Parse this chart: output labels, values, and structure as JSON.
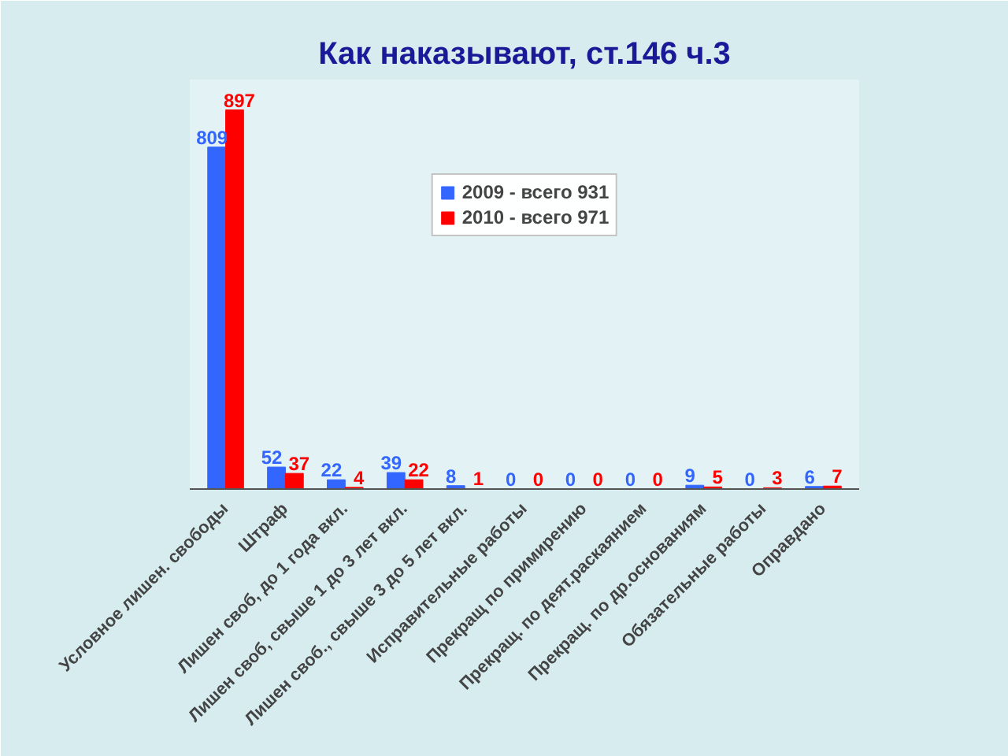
{
  "chart_data": {
    "type": "bar",
    "title": "Как наказывают, ст.146 ч.3",
    "categories": [
      "Условное лишен. свободы",
      "Штраф",
      "Лишен своб, до 1 года вкл.",
      "Лишен своб, свыше 1 до 3 лет вкл.",
      "Лишен своб., свыше 3 до 5 лет вкл.",
      "Исправительные работы",
      "Прекращ по примирению",
      "Прекращ. по деят.раскаянием",
      "Прекращ. по др.основаниям",
      "Обязательные работы",
      "Оправдано"
    ],
    "series": [
      {
        "name": "2009 - всего 931",
        "color": "#3366ff",
        "values": [
          809,
          52,
          22,
          39,
          8,
          0,
          0,
          0,
          9,
          0,
          6
        ]
      },
      {
        "name": "2010 - всего 971",
        "color": "#ff0000",
        "values": [
          897,
          37,
          4,
          22,
          1,
          0,
          0,
          0,
          5,
          3,
          7
        ]
      }
    ],
    "data_labels": true,
    "legend": "top",
    "grid": false
  }
}
